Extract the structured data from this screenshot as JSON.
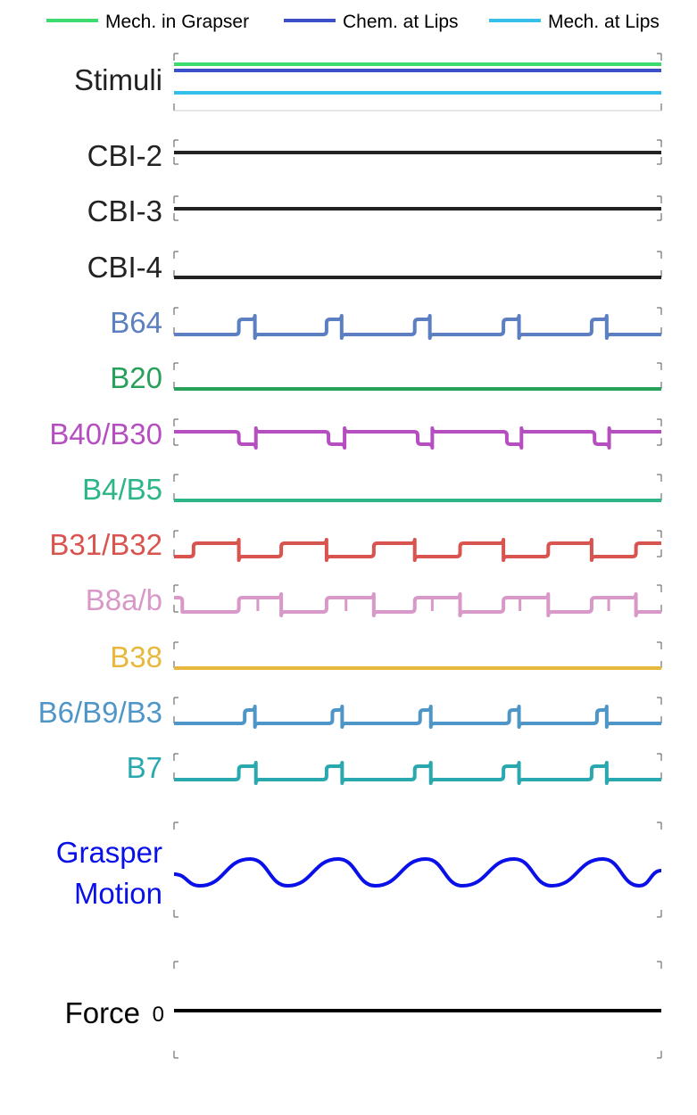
{
  "legend": [
    {
      "label": "Mech. in Grapser",
      "color": "#3ddc6e"
    },
    {
      "label": "Chem. at Lips",
      "color": "#3b4fc8"
    },
    {
      "label": "Mech. at Lips",
      "color": "#36bfe8"
    }
  ],
  "chart_data": {
    "type": "line",
    "x": {
      "range": [
        0,
        1
      ]
    },
    "panels": [
      {
        "label": "Stimuli",
        "color": "#222222",
        "kind": "stimuli",
        "series": [
          {
            "name": "Mech. in Grapser",
            "color": "#3ddc6e",
            "level": 1
          },
          {
            "name": "Chem. at Lips",
            "color": "#3b4fc8",
            "level": 1
          },
          {
            "name": "Mech. at Lips",
            "color": "#36bfe8",
            "level": 1
          }
        ]
      },
      {
        "label": "CBI-2",
        "color": "#222222",
        "kind": "flat"
      },
      {
        "label": "CBI-3",
        "color": "#222222",
        "kind": "flat"
      },
      {
        "label": "CBI-4",
        "color": "#222222",
        "kind": "flat"
      },
      {
        "label": "B64",
        "color": "#5b7fc0",
        "kind": "pulse",
        "pulses": [
          [
            0.133,
            0.166
          ],
          [
            0.313,
            0.344
          ],
          [
            0.494,
            0.525
          ],
          [
            0.676,
            0.708
          ],
          [
            0.857,
            0.888
          ]
        ]
      },
      {
        "label": "B20",
        "color": "#27a05a",
        "kind": "flat"
      },
      {
        "label": "B40/B30",
        "color": "#b54fc0",
        "kind": "dip",
        "pulses": [
          [
            0.133,
            0.168
          ],
          [
            0.317,
            0.35
          ],
          [
            0.5,
            0.53
          ],
          [
            0.683,
            0.713
          ],
          [
            0.863,
            0.893
          ]
        ]
      },
      {
        "label": "B4/B5",
        "color": "#2db58a",
        "kind": "flat"
      },
      {
        "label": "B31/B32",
        "color": "#d9534f",
        "kind": "pulse",
        "pulses": [
          [
            0.04,
            0.133
          ],
          [
            0.22,
            0.313
          ],
          [
            0.41,
            0.494
          ],
          [
            0.587,
            0.676
          ],
          [
            0.768,
            0.857
          ],
          [
            0.948,
            1.0
          ]
        ]
      },
      {
        "label": "B8a/b",
        "color": "#d898c8",
        "kind": "pulse",
        "pulses": [
          [
            0.0,
            0.017
          ],
          [
            0.133,
            0.22
          ],
          [
            0.313,
            0.41
          ],
          [
            0.494,
            0.587
          ],
          [
            0.676,
            0.768
          ],
          [
            0.857,
            0.948
          ]
        ],
        "spikes": [
          0.172,
          0.353,
          0.53,
          0.71,
          0.892
        ]
      },
      {
        "label": "B38",
        "color": "#e8b83c",
        "kind": "flat"
      },
      {
        "label": "B6/B9/B3",
        "color": "#4f96c8",
        "kind": "pulse",
        "pulses": [
          [
            0.145,
            0.166
          ],
          [
            0.325,
            0.345
          ],
          [
            0.505,
            0.527
          ],
          [
            0.688,
            0.708
          ],
          [
            0.868,
            0.888
          ]
        ]
      },
      {
        "label": "B7",
        "color": "#2aa8b0",
        "kind": "pulse",
        "pulses": [
          [
            0.133,
            0.168
          ],
          [
            0.313,
            0.345
          ],
          [
            0.494,
            0.527
          ],
          [
            0.676,
            0.708
          ],
          [
            0.857,
            0.888
          ]
        ]
      },
      {
        "label": "Grasper Motion",
        "color": "#0a10e8",
        "kind": "wave",
        "peaks": [
          0.156,
          0.337,
          0.517,
          0.698,
          0.88
        ],
        "troughs": [
          0.053,
          0.233,
          0.413,
          0.592,
          0.775,
          0.955
        ]
      },
      {
        "label": "Force",
        "color": "#000000",
        "kind": "flat",
        "ytick": "0",
        "value": 0
      }
    ]
  }
}
